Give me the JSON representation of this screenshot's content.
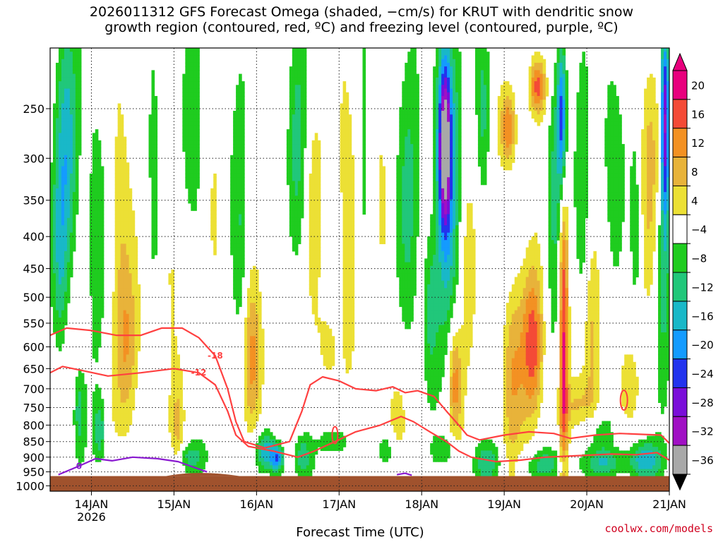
{
  "title": {
    "line1": "2026011312 GFS Forecast Omega (shaded, −cm/s) for KRUT with dendritic snow",
    "line2": "growth region (contoured, red, ºC) and freezing level (contoured, purple, ºC)"
  },
  "credit": "coolwx.com/models",
  "chart_data": {
    "type": "heatmap",
    "title": "2026011312 GFS Forecast Omega (shaded, −cm/s) for KRUT with dendritic snow growth region (contoured, red, ºC) and freezing level (contoured, purple, ºC)",
    "xlabel": "Forecast Time (UTC)",
    "ylabel": "",
    "x_ticks": [
      {
        "label": "14JAN",
        "sub": "2026",
        "day": 14
      },
      {
        "label": "15JAN",
        "day": 15
      },
      {
        "label": "16JAN",
        "day": 16
      },
      {
        "label": "17JAN",
        "day": 17
      },
      {
        "label": "18JAN",
        "day": 18
      },
      {
        "label": "19JAN",
        "day": 19
      },
      {
        "label": "20JAN",
        "day": 20
      },
      {
        "label": "21JAN",
        "day": 21
      }
    ],
    "xlim": [
      13.5,
      21.0
    ],
    "y_ticks": [
      250,
      300,
      350,
      400,
      450,
      500,
      550,
      600,
      650,
      700,
      750,
      800,
      850,
      900,
      950,
      1000
    ],
    "ylim": [
      200,
      1020
    ],
    "y_scale": "log-pressure",
    "grid": true,
    "colorbar": {
      "ticks": [
        "20",
        "16",
        "12",
        "8",
        "4",
        "−4",
        "−8",
        "−12",
        "−16",
        "−20",
        "−24",
        "−28",
        "−32",
        "−36"
      ],
      "bins": [
        {
          "range": "> 20",
          "color": "#e8007d"
        },
        {
          "range": "16 to 20",
          "color": "#f44a36"
        },
        {
          "range": "12 to 16",
          "color": "#f39123"
        },
        {
          "range": "8 to 12",
          "color": "#e8b33a"
        },
        {
          "range": "4 to 8",
          "color": "#ece035"
        },
        {
          "range": "-4 to 4",
          "color": "#ffffff"
        },
        {
          "range": "-8 to -4",
          "color": "#1fcc1f"
        },
        {
          "range": "-12 to -8",
          "color": "#21c77a"
        },
        {
          "range": "-16 to -12",
          "color": "#19b8c8"
        },
        {
          "range": "-20 to -16",
          "color": "#149bff"
        },
        {
          "range": "-24 to -20",
          "color": "#2233ee"
        },
        {
          "range": "-28 to -24",
          "color": "#7a0ed9"
        },
        {
          "range": "-32 to -28",
          "color": "#a010c4"
        },
        {
          "range": "< -36",
          "color": "#a8a8a8"
        }
      ]
    },
    "terrain_color": "#a0522d",
    "surface_pressure_approx": 965,
    "contours": {
      "dendritic_minus12": {
        "label": "-12",
        "color": "#ff4040",
        "points": [
          [
            13.5,
            660
          ],
          [
            13.65,
            645
          ],
          [
            13.9,
            655
          ],
          [
            14.2,
            668
          ],
          [
            14.6,
            660
          ],
          [
            15.0,
            650
          ],
          [
            15.3,
            660
          ],
          [
            15.5,
            690
          ],
          [
            15.65,
            760
          ],
          [
            15.75,
            830
          ],
          [
            15.9,
            865
          ],
          [
            16.2,
            880
          ],
          [
            16.5,
            900
          ],
          [
            16.7,
            880
          ],
          [
            16.95,
            850
          ],
          [
            17.2,
            820
          ],
          [
            17.5,
            800
          ],
          [
            17.75,
            775
          ],
          [
            17.9,
            790
          ],
          [
            18.1,
            820
          ],
          [
            18.3,
            850
          ],
          [
            18.45,
            880
          ],
          [
            18.6,
            900
          ],
          [
            18.9,
            915
          ],
          [
            19.2,
            910
          ],
          [
            19.5,
            900
          ],
          [
            19.9,
            895
          ],
          [
            20.3,
            890
          ],
          [
            20.6,
            892
          ],
          [
            20.85,
            885
          ],
          [
            21.0,
            910
          ]
        ]
      },
      "dendritic_minus18": {
        "label": "-18",
        "color": "#ff4040",
        "points": [
          [
            13.5,
            575
          ],
          [
            13.7,
            560
          ],
          [
            14.0,
            565
          ],
          [
            14.3,
            575
          ],
          [
            14.6,
            575
          ],
          [
            14.85,
            560
          ],
          [
            15.1,
            560
          ],
          [
            15.3,
            580
          ],
          [
            15.5,
            620
          ],
          [
            15.65,
            700
          ],
          [
            15.75,
            790
          ],
          [
            15.85,
            850
          ],
          [
            16.1,
            870
          ],
          [
            16.4,
            850
          ],
          [
            16.55,
            760
          ],
          [
            16.65,
            690
          ],
          [
            16.8,
            670
          ],
          [
            17.0,
            680
          ],
          [
            17.2,
            700
          ],
          [
            17.45,
            705
          ],
          [
            17.65,
            695
          ],
          [
            17.8,
            710
          ],
          [
            17.95,
            705
          ],
          [
            18.15,
            720
          ],
          [
            18.3,
            760
          ],
          [
            18.45,
            800
          ],
          [
            18.55,
            830
          ],
          [
            18.7,
            845
          ],
          [
            19.0,
            830
          ],
          [
            19.3,
            820
          ],
          [
            19.6,
            825
          ],
          [
            19.8,
            840
          ],
          [
            20.1,
            830
          ],
          [
            20.4,
            825
          ],
          [
            20.7,
            828
          ],
          [
            20.9,
            830
          ],
          [
            21.0,
            855
          ]
        ]
      },
      "freezing_level_0": {
        "label": "0",
        "color": "#8a1ad0",
        "points": [
          [
            13.6,
            960
          ],
          [
            13.85,
            930
          ],
          [
            14.05,
            905
          ],
          [
            14.25,
            912
          ],
          [
            14.5,
            900
          ],
          [
            14.8,
            905
          ],
          [
            15.05,
            915
          ],
          [
            15.25,
            935
          ],
          [
            15.4,
            950
          ]
        ]
      },
      "freezing_level_0b": {
        "label": "",
        "color": "#8a1ad0",
        "points": [
          [
            17.7,
            960
          ],
          [
            17.8,
            955
          ],
          [
            17.88,
            962
          ]
        ]
      }
    }
  }
}
